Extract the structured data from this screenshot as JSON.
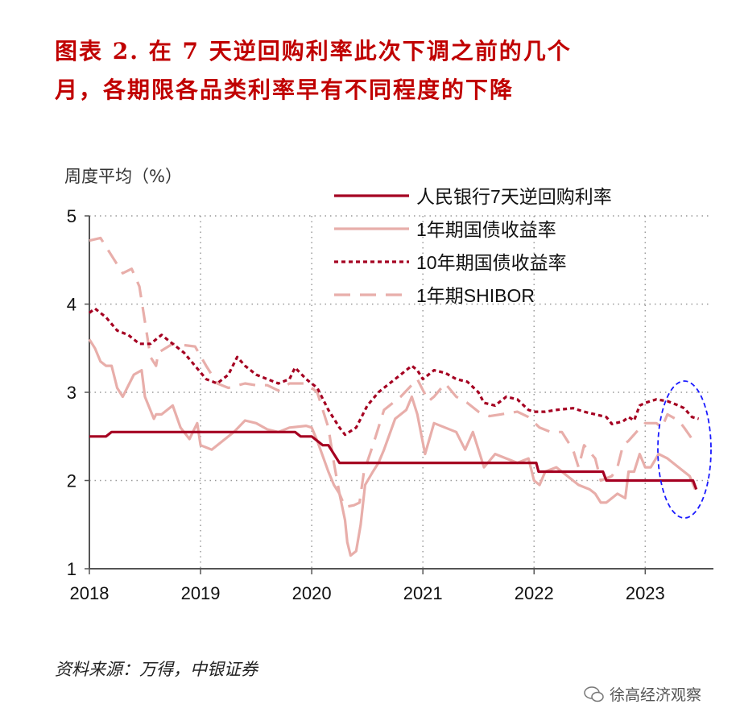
{
  "title": {
    "line1": "图表 2.   在 7 天逆回购利率此次下调之前的几个",
    "line2": "月，各期限各品类利率早有不同程度的下降"
  },
  "source": "资料来源：万得，中银证券",
  "watermark": "徐高经济观察",
  "chart_data": {
    "type": "line",
    "ylabel": "周度平均（%）",
    "xlim": [
      2018,
      2023.57
    ],
    "ylim": [
      1,
      5
    ],
    "x_ticks": [
      "2018",
      "2019",
      "2020",
      "2021",
      "2022",
      "2023"
    ],
    "y_ticks": [
      "1",
      "2",
      "3",
      "4",
      "5"
    ],
    "grid": true,
    "legend": "top-right",
    "annotation": "blue dashed ellipse highlighting 2023 period",
    "series": [
      {
        "name": "人民银行7天逆回购利率",
        "color": "#a50021",
        "style": "solid",
        "points": [
          [
            2018,
            2.5
          ],
          [
            2018.15,
            2.5
          ],
          [
            2018.2,
            2.55
          ],
          [
            2019.85,
            2.55
          ],
          [
            2019.9,
            2.5
          ],
          [
            2020.0,
            2.5
          ],
          [
            2020.1,
            2.4
          ],
          [
            2020.15,
            2.4
          ],
          [
            2020.25,
            2.2
          ],
          [
            2022.02,
            2.2
          ],
          [
            2022.04,
            2.1
          ],
          [
            2022.62,
            2.1
          ],
          [
            2022.65,
            2.0
          ],
          [
            2023.43,
            2.0
          ],
          [
            2023.46,
            1.9
          ]
        ]
      },
      {
        "name": "1年期国债收益率",
        "color": "#e8aeaa",
        "style": "solid",
        "points": [
          [
            2018.0,
            3.6
          ],
          [
            2018.05,
            3.5
          ],
          [
            2018.1,
            3.35
          ],
          [
            2018.15,
            3.3
          ],
          [
            2018.2,
            3.3
          ],
          [
            2018.25,
            3.05
          ],
          [
            2018.3,
            2.95
          ],
          [
            2018.4,
            3.2
          ],
          [
            2018.47,
            3.25
          ],
          [
            2018.5,
            2.95
          ],
          [
            2018.58,
            2.7
          ],
          [
            2018.6,
            2.75
          ],
          [
            2018.65,
            2.75
          ],
          [
            2018.75,
            2.85
          ],
          [
            2018.82,
            2.6
          ],
          [
            2018.9,
            2.47
          ],
          [
            2018.97,
            2.65
          ],
          [
            2019.0,
            2.4
          ],
          [
            2019.1,
            2.35
          ],
          [
            2019.2,
            2.45
          ],
          [
            2019.3,
            2.55
          ],
          [
            2019.4,
            2.68
          ],
          [
            2019.5,
            2.65
          ],
          [
            2019.6,
            2.58
          ],
          [
            2019.7,
            2.55
          ],
          [
            2019.8,
            2.6
          ],
          [
            2019.95,
            2.62
          ],
          [
            2020.0,
            2.6
          ],
          [
            2020.05,
            2.45
          ],
          [
            2020.15,
            2.1
          ],
          [
            2020.2,
            1.95
          ],
          [
            2020.25,
            1.85
          ],
          [
            2020.3,
            1.55
          ],
          [
            2020.32,
            1.3
          ],
          [
            2020.35,
            1.15
          ],
          [
            2020.4,
            1.2
          ],
          [
            2020.44,
            1.5
          ],
          [
            2020.48,
            1.95
          ],
          [
            2020.55,
            2.1
          ],
          [
            2020.6,
            2.2
          ],
          [
            2020.65,
            2.35
          ],
          [
            2020.75,
            2.7
          ],
          [
            2020.85,
            2.8
          ],
          [
            2020.9,
            2.95
          ],
          [
            2020.95,
            2.75
          ],
          [
            2021.02,
            2.3
          ],
          [
            2021.1,
            2.65
          ],
          [
            2021.2,
            2.6
          ],
          [
            2021.3,
            2.55
          ],
          [
            2021.38,
            2.35
          ],
          [
            2021.45,
            2.55
          ],
          [
            2021.55,
            2.15
          ],
          [
            2021.65,
            2.3
          ],
          [
            2021.75,
            2.25
          ],
          [
            2021.85,
            2.2
          ],
          [
            2021.95,
            2.25
          ],
          [
            2022.0,
            2.0
          ],
          [
            2022.05,
            1.95
          ],
          [
            2022.1,
            2.1
          ],
          [
            2022.2,
            2.15
          ],
          [
            2022.3,
            2.05
          ],
          [
            2022.4,
            1.95
          ],
          [
            2022.5,
            1.9
          ],
          [
            2022.55,
            1.85
          ],
          [
            2022.6,
            1.75
          ],
          [
            2022.65,
            1.75
          ],
          [
            2022.75,
            1.85
          ],
          [
            2022.82,
            1.8
          ],
          [
            2022.85,
            2.1
          ],
          [
            2022.9,
            2.1
          ],
          [
            2022.95,
            2.3
          ],
          [
            2023.0,
            2.15
          ],
          [
            2023.05,
            2.15
          ],
          [
            2023.12,
            2.3
          ],
          [
            2023.2,
            2.25
          ],
          [
            2023.3,
            2.15
          ],
          [
            2023.4,
            2.05
          ],
          [
            2023.45,
            1.9
          ]
        ]
      },
      {
        "name": "10年期国债收益率",
        "color": "#a50021",
        "style": "dotted",
        "points": [
          [
            2018.0,
            3.9
          ],
          [
            2018.05,
            3.95
          ],
          [
            2018.15,
            3.85
          ],
          [
            2018.25,
            3.7
          ],
          [
            2018.35,
            3.65
          ],
          [
            2018.45,
            3.55
          ],
          [
            2018.55,
            3.55
          ],
          [
            2018.65,
            3.65
          ],
          [
            2018.75,
            3.55
          ],
          [
            2018.85,
            3.45
          ],
          [
            2018.95,
            3.3
          ],
          [
            2019.05,
            3.15
          ],
          [
            2019.15,
            3.1
          ],
          [
            2019.25,
            3.2
          ],
          [
            2019.33,
            3.4
          ],
          [
            2019.4,
            3.3
          ],
          [
            2019.5,
            3.2
          ],
          [
            2019.6,
            3.15
          ],
          [
            2019.7,
            3.1
          ],
          [
            2019.8,
            3.15
          ],
          [
            2019.85,
            3.28
          ],
          [
            2019.95,
            3.15
          ],
          [
            2020.05,
            3.05
          ],
          [
            2020.15,
            2.8
          ],
          [
            2020.25,
            2.6
          ],
          [
            2020.3,
            2.52
          ],
          [
            2020.4,
            2.6
          ],
          [
            2020.5,
            2.85
          ],
          [
            2020.6,
            3.0
          ],
          [
            2020.7,
            3.1
          ],
          [
            2020.8,
            3.2
          ],
          [
            2020.9,
            3.3
          ],
          [
            2020.95,
            3.25
          ],
          [
            2021.0,
            3.15
          ],
          [
            2021.1,
            3.25
          ],
          [
            2021.2,
            3.22
          ],
          [
            2021.3,
            3.15
          ],
          [
            2021.4,
            3.12
          ],
          [
            2021.5,
            3.0
          ],
          [
            2021.55,
            2.88
          ],
          [
            2021.65,
            2.85
          ],
          [
            2021.75,
            2.95
          ],
          [
            2021.85,
            2.92
          ],
          [
            2021.95,
            2.8
          ],
          [
            2022.0,
            2.78
          ],
          [
            2022.1,
            2.78
          ],
          [
            2022.2,
            2.8
          ],
          [
            2022.35,
            2.82
          ],
          [
            2022.45,
            2.78
          ],
          [
            2022.55,
            2.75
          ],
          [
            2022.65,
            2.72
          ],
          [
            2022.7,
            2.64
          ],
          [
            2022.8,
            2.67
          ],
          [
            2022.85,
            2.72
          ],
          [
            2022.9,
            2.68
          ],
          [
            2022.95,
            2.85
          ],
          [
            2023.0,
            2.88
          ],
          [
            2023.1,
            2.92
          ],
          [
            2023.2,
            2.9
          ],
          [
            2023.3,
            2.85
          ],
          [
            2023.35,
            2.82
          ],
          [
            2023.42,
            2.72
          ],
          [
            2023.48,
            2.7
          ]
        ]
      },
      {
        "name": "1年期SHIBOR",
        "color": "#e8aeaa",
        "style": "dashed",
        "points": [
          [
            2018.0,
            4.72
          ],
          [
            2018.1,
            4.75
          ],
          [
            2018.2,
            4.55
          ],
          [
            2018.3,
            4.35
          ],
          [
            2018.38,
            4.4
          ],
          [
            2018.45,
            4.2
          ],
          [
            2018.55,
            3.4
          ],
          [
            2018.6,
            3.3
          ],
          [
            2018.62,
            3.45
          ],
          [
            2018.75,
            3.55
          ],
          [
            2018.95,
            3.52
          ],
          [
            2019.05,
            3.3
          ],
          [
            2019.15,
            3.1
          ],
          [
            2019.25,
            3.05
          ],
          [
            2019.4,
            3.1
          ],
          [
            2019.5,
            3.08
          ],
          [
            2019.6,
            3.08
          ],
          [
            2019.7,
            3.02
          ],
          [
            2019.8,
            3.1
          ],
          [
            2019.95,
            3.1
          ],
          [
            2020.05,
            3.0
          ],
          [
            2020.15,
            2.6
          ],
          [
            2020.2,
            2.2
          ],
          [
            2020.25,
            1.85
          ],
          [
            2020.3,
            1.7
          ],
          [
            2020.38,
            1.72
          ],
          [
            2020.43,
            1.75
          ],
          [
            2020.47,
            2.1
          ],
          [
            2020.55,
            2.4
          ],
          [
            2020.65,
            2.8
          ],
          [
            2020.8,
            2.95
          ],
          [
            2020.95,
            3.15
          ],
          [
            2021.05,
            2.9
          ],
          [
            2021.1,
            2.95
          ],
          [
            2021.2,
            3.1
          ],
          [
            2021.3,
            2.95
          ],
          [
            2021.4,
            2.88
          ],
          [
            2021.5,
            2.78
          ],
          [
            2021.6,
            2.73
          ],
          [
            2021.7,
            2.75
          ],
          [
            2021.85,
            2.78
          ],
          [
            2021.95,
            2.72
          ],
          [
            2022.05,
            2.6
          ],
          [
            2022.15,
            2.55
          ],
          [
            2022.25,
            2.55
          ],
          [
            2022.35,
            2.35
          ],
          [
            2022.4,
            2.15
          ],
          [
            2022.45,
            2.4
          ],
          [
            2022.55,
            2.25
          ],
          [
            2022.6,
            2.0
          ],
          [
            2022.7,
            2.05
          ],
          [
            2022.75,
            2.15
          ],
          [
            2022.8,
            2.4
          ],
          [
            2022.85,
            2.45
          ],
          [
            2022.92,
            2.55
          ],
          [
            2023.0,
            2.65
          ],
          [
            2023.1,
            2.65
          ],
          [
            2023.15,
            2.6
          ],
          [
            2023.2,
            2.75
          ],
          [
            2023.3,
            2.68
          ],
          [
            2023.35,
            2.6
          ],
          [
            2023.45,
            2.42
          ]
        ]
      }
    ]
  }
}
